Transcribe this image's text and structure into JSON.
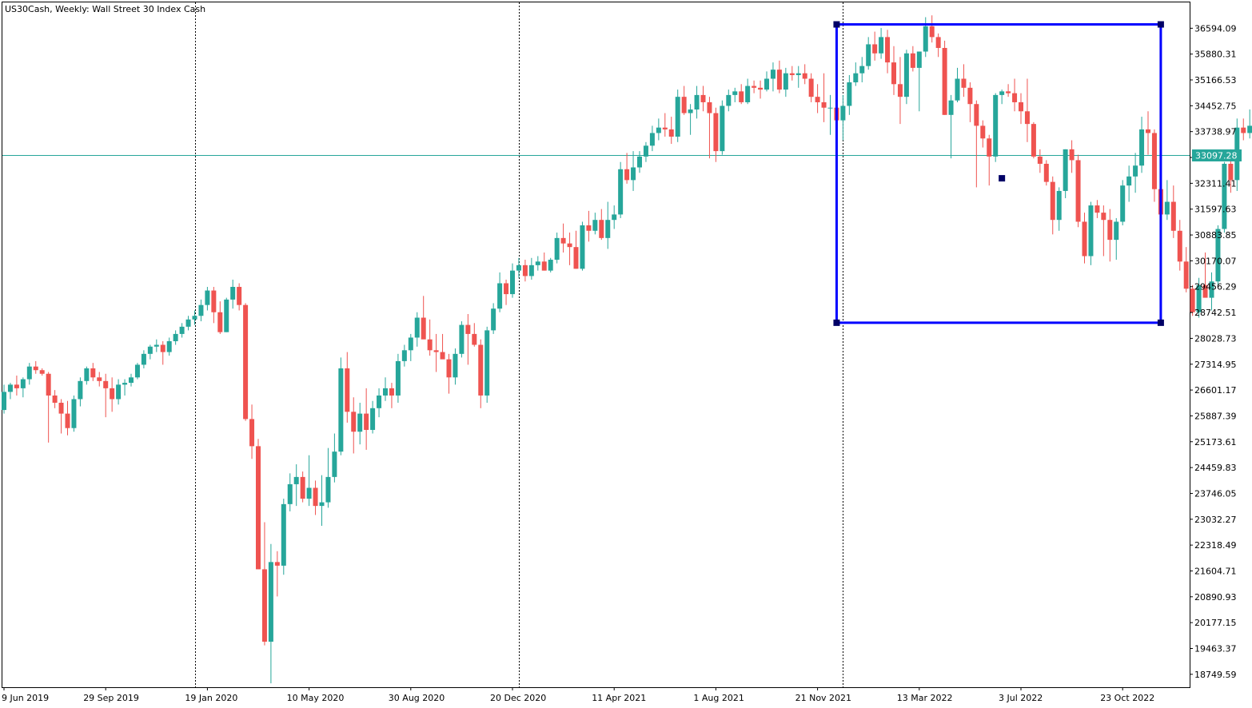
{
  "chart_data": {
    "type": "candlestick",
    "title": "US30Cash, Weekly:  Wall Street 30 Index Cash",
    "symbol": "US30Cash",
    "timeframe": "Weekly",
    "description": "Wall Street 30 Index Cash",
    "ylim": [
      18392.68,
      37307.78
    ],
    "y_ticks": [
      "36594.09",
      "35880.31",
      "35166.53",
      "34452.75",
      "33738.97",
      "33025.19",
      "32311.41",
      "31597.63",
      "30883.85",
      "30170.07",
      "29456.29",
      "28742.51",
      "28028.73",
      "27314.95",
      "26601.17",
      "25887.39",
      "25173.61",
      "24459.83",
      "23746.05",
      "23032.27",
      "22318.49",
      "21604.71",
      "20890.93",
      "20177.15",
      "19463.37",
      "18749.59"
    ],
    "x_tick_labels": [
      "9 Jun 2019",
      "29 Sep 2019",
      "19 Jan 2020",
      "10 May 2020",
      "30 Aug 2020",
      "20 Dec 2020",
      "11 Apr 2021",
      "1 Aug 2021",
      "21 Nov 2021",
      "13 Mar 2022",
      "3 Jul 2022",
      "23 Oct 2022"
    ],
    "x_tick_bar_index": [
      0,
      16,
      32,
      48,
      64,
      80,
      96,
      112,
      128,
      144,
      160,
      176
    ],
    "current_price": "33097.28",
    "current_price_value": 33097.28,
    "grid": false,
    "period_separators_bar_index": [
      30,
      81,
      132
    ],
    "bull_color": "#26a69a",
    "bear_color": "#ef5350",
    "price_line_color": "#26a69a",
    "rectangle": {
      "start_bar": 131,
      "end_bar": 182,
      "price_high": 36700,
      "price_low": 28460,
      "color": "#0000ff"
    },
    "anchor_point": {
      "bar": 157,
      "price": 32450
    },
    "candles": [
      [
        26050,
        26750,
        25950,
        26550
      ],
      [
        26550,
        26800,
        26350,
        26750
      ],
      [
        26750,
        27000,
        26450,
        26650
      ],
      [
        26650,
        26950,
        26400,
        26900
      ],
      [
        26900,
        27350,
        26750,
        27250
      ],
      [
        27250,
        27400,
        27050,
        27150
      ],
      [
        27150,
        27200,
        27000,
        27050
      ],
      [
        27050,
        27100,
        25150,
        26450
      ],
      [
        26450,
        26600,
        26100,
        26250
      ],
      [
        26250,
        26350,
        25400,
        25950
      ],
      [
        25950,
        26300,
        25350,
        25550
      ],
      [
        25550,
        26450,
        25450,
        26350
      ],
      [
        26350,
        26950,
        26150,
        26850
      ],
      [
        26850,
        27250,
        26750,
        27200
      ],
      [
        27200,
        27350,
        26850,
        26950
      ],
      [
        26950,
        27100,
        26700,
        26850
      ],
      [
        26850,
        27050,
        25850,
        26650
      ],
      [
        26650,
        26950,
        26000,
        26350
      ],
      [
        26350,
        26900,
        26200,
        26750
      ],
      [
        26750,
        26900,
        26450,
        26800
      ],
      [
        26800,
        27050,
        26700,
        26950
      ],
      [
        26950,
        27350,
        26900,
        27300
      ],
      [
        27300,
        27700,
        27200,
        27600
      ],
      [
        27600,
        27850,
        27450,
        27800
      ],
      [
        27800,
        28000,
        27650,
        27850
      ],
      [
        27850,
        27950,
        27300,
        27650
      ],
      [
        27650,
        28050,
        27550,
        27950
      ],
      [
        27950,
        28250,
        27850,
        28150
      ],
      [
        28150,
        28450,
        28050,
        28350
      ],
      [
        28350,
        28650,
        28250,
        28550
      ],
      [
        28550,
        28800,
        28400,
        28650
      ],
      [
        28650,
        29100,
        28500,
        28950
      ],
      [
        28950,
        29450,
        28800,
        29350
      ],
      [
        29350,
        29450,
        28450,
        28750
      ],
      [
        28750,
        29050,
        28150,
        28200
      ],
      [
        28200,
        29150,
        28200,
        29100
      ],
      [
        29100,
        29650,
        28850,
        29450
      ],
      [
        29450,
        29550,
        28800,
        28950
      ],
      [
        28950,
        29000,
        25750,
        25800
      ],
      [
        25800,
        26200,
        24700,
        25050
      ],
      [
        25050,
        25250,
        21650,
        21650
      ],
      [
        21650,
        22950,
        19550,
        19650
      ],
      [
        19650,
        22350,
        18500,
        21850
      ],
      [
        21850,
        22150,
        20900,
        21750
      ],
      [
        21750,
        23600,
        21500,
        23450
      ],
      [
        23450,
        24300,
        23250,
        24000
      ],
      [
        24000,
        24550,
        23400,
        24200
      ],
      [
        24200,
        24350,
        23500,
        23600
      ],
      [
        23600,
        24800,
        23400,
        23900
      ],
      [
        23900,
        24100,
        23150,
        23400
      ],
      [
        23400,
        24250,
        22850,
        23500
      ],
      [
        23500,
        25000,
        23350,
        24200
      ],
      [
        24200,
        25400,
        24050,
        24900
      ],
      [
        24900,
        27500,
        24800,
        27200
      ],
      [
        27200,
        27650,
        25700,
        26000
      ],
      [
        26000,
        26400,
        24850,
        25450
      ],
      [
        25450,
        26250,
        25100,
        25950
      ],
      [
        25950,
        26650,
        24950,
        25500
      ],
      [
        25500,
        26300,
        25400,
        26100
      ],
      [
        26100,
        26650,
        25850,
        26450
      ],
      [
        26450,
        26950,
        26300,
        26650
      ],
      [
        26650,
        26800,
        26100,
        26450
      ],
      [
        26450,
        27600,
        26250,
        27400
      ],
      [
        27400,
        27850,
        27250,
        27700
      ],
      [
        27700,
        28150,
        27400,
        28050
      ],
      [
        28050,
        28750,
        27800,
        28600
      ],
      [
        28600,
        29200,
        28150,
        28000
      ],
      [
        28000,
        28550,
        27550,
        27700
      ],
      [
        27700,
        28150,
        27100,
        27650
      ],
      [
        27650,
        28150,
        27500,
        27450
      ],
      [
        27450,
        27600,
        26500,
        26950
      ],
      [
        26950,
        27750,
        26750,
        27600
      ],
      [
        27600,
        28500,
        27500,
        28400
      ],
      [
        28400,
        28700,
        27300,
        28150
      ],
      [
        28150,
        28450,
        27800,
        27850
      ],
      [
        27850,
        28000,
        26100,
        26450
      ],
      [
        26450,
        28350,
        26250,
        28250
      ],
      [
        28250,
        29000,
        28150,
        28850
      ],
      [
        28850,
        29850,
        28750,
        29550
      ],
      [
        29550,
        29650,
        28950,
        29250
      ],
      [
        29250,
        30100,
        29150,
        29900
      ],
      [
        29900,
        30250,
        29700,
        30050
      ],
      [
        30050,
        30200,
        29600,
        29750
      ],
      [
        29750,
        30250,
        29650,
        30050
      ],
      [
        30050,
        30300,
        29900,
        30150
      ],
      [
        30150,
        30400,
        29900,
        29900
      ],
      [
        29900,
        30250,
        29850,
        30200
      ],
      [
        30200,
        30950,
        30100,
        30800
      ],
      [
        30800,
        31200,
        30400,
        30650
      ],
      [
        30650,
        30950,
        30050,
        30550
      ],
      [
        30550,
        31000,
        29950,
        29950
      ],
      [
        29950,
        31250,
        29900,
        31150
      ],
      [
        31150,
        31550,
        30700,
        31000
      ],
      [
        31000,
        31500,
        30900,
        31300
      ],
      [
        31300,
        31600,
        30750,
        30800
      ],
      [
        30800,
        31800,
        30500,
        31300
      ],
      [
        31300,
        31700,
        31050,
        31450
      ],
      [
        31450,
        32900,
        31350,
        32700
      ],
      [
        32700,
        33150,
        32300,
        32400
      ],
      [
        32400,
        33200,
        32100,
        32750
      ],
      [
        32750,
        33200,
        32600,
        33050
      ],
      [
        33050,
        33450,
        32900,
        33350
      ],
      [
        33350,
        33900,
        33200,
        33700
      ],
      [
        33700,
        34100,
        33500,
        33850
      ],
      [
        33850,
        34250,
        33600,
        33800
      ],
      [
        33800,
        34150,
        33400,
        33600
      ],
      [
        33600,
        34900,
        33450,
        34700
      ],
      [
        34700,
        35000,
        34200,
        34250
      ],
      [
        34250,
        34500,
        33650,
        34350
      ],
      [
        34350,
        35000,
        34100,
        34750
      ],
      [
        34750,
        35000,
        34300,
        34550
      ],
      [
        34550,
        34700,
        33000,
        34250
      ],
      [
        34250,
        34400,
        32900,
        33200
      ],
      [
        33200,
        34600,
        33100,
        34450
      ],
      [
        34450,
        34900,
        34300,
        34750
      ],
      [
        34750,
        34950,
        34550,
        34850
      ],
      [
        34850,
        35050,
        34500,
        34550
      ],
      [
        34550,
        35200,
        34500,
        35000
      ],
      [
        35000,
        35150,
        34800,
        34950
      ],
      [
        34950,
        35150,
        34650,
        34900
      ],
      [
        34900,
        35400,
        34850,
        35200
      ],
      [
        35200,
        35650,
        34850,
        35450
      ],
      [
        35450,
        35700,
        34800,
        34900
      ],
      [
        34900,
        35500,
        34700,
        35350
      ],
      [
        35350,
        35550,
        35150,
        35300
      ],
      [
        35300,
        35550,
        34950,
        35350
      ],
      [
        35350,
        35600,
        35050,
        35200
      ],
      [
        35200,
        35350,
        34550,
        34700
      ],
      [
        34700,
        35050,
        34250,
        34550
      ],
      [
        34550,
        35350,
        34000,
        34400
      ],
      [
        34400,
        34750,
        33650,
        34400
      ],
      [
        34400,
        34500,
        33850,
        34050
      ],
      [
        34050,
        34750,
        33500,
        34450
      ],
      [
        34450,
        35300,
        34200,
        35100
      ],
      [
        35100,
        35650,
        35000,
        35350
      ],
      [
        35350,
        35800,
        35100,
        35550
      ],
      [
        35550,
        36350,
        35450,
        36150
      ],
      [
        36150,
        36500,
        35700,
        35900
      ],
      [
        35900,
        36600,
        35750,
        36350
      ],
      [
        36350,
        36550,
        35350,
        35650
      ],
      [
        35650,
        36100,
        34750,
        35050
      ],
      [
        35050,
        35800,
        33950,
        34700
      ],
      [
        34700,
        36000,
        34500,
        35900
      ],
      [
        35900,
        36100,
        35400,
        35500
      ],
      [
        35500,
        35950,
        34300,
        35950
      ],
      [
        35950,
        36900,
        35800,
        36650
      ],
      [
        36650,
        36950,
        36200,
        36350
      ],
      [
        36350,
        36450,
        35800,
        36050
      ],
      [
        36050,
        36250,
        34200,
        34200
      ],
      [
        34200,
        34750,
        33000,
        34600
      ],
      [
        34600,
        35500,
        34550,
        35200
      ],
      [
        35200,
        35600,
        34700,
        34950
      ],
      [
        34950,
        35100,
        34000,
        34500
      ],
      [
        34500,
        34600,
        32200,
        33900
      ],
      [
        33900,
        34050,
        33300,
        33550
      ],
      [
        33550,
        33650,
        32250,
        33050
      ],
      [
        33050,
        34800,
        32900,
        34750
      ],
      [
        34750,
        34900,
        34500,
        34850
      ],
      [
        34850,
        35050,
        34700,
        34800
      ],
      [
        34800,
        35200,
        34300,
        34550
      ],
      [
        34550,
        34800,
        33950,
        34300
      ],
      [
        34300,
        35200,
        33450,
        33950
      ],
      [
        33950,
        34000,
        33000,
        33050
      ],
      [
        33050,
        33250,
        32600,
        32850
      ],
      [
        32850,
        32950,
        32250,
        32350
      ],
      [
        32350,
        32500,
        30900,
        31300
      ],
      [
        31300,
        32200,
        31000,
        32100
      ],
      [
        32100,
        33250,
        31900,
        33250
      ],
      [
        33250,
        33500,
        32600,
        32950
      ],
      [
        32950,
        33100,
        31100,
        31250
      ],
      [
        31250,
        31500,
        30100,
        30300
      ],
      [
        30300,
        31800,
        30050,
        31700
      ],
      [
        31700,
        31850,
        31350,
        31500
      ],
      [
        31500,
        31700,
        30300,
        31300
      ],
      [
        31300,
        31600,
        30150,
        30750
      ],
      [
        30750,
        31350,
        30200,
        31250
      ],
      [
        31250,
        32400,
        31150,
        32250
      ],
      [
        32250,
        32800,
        31800,
        32500
      ],
      [
        32500,
        33150,
        32050,
        32800
      ],
      [
        32800,
        34150,
        32600,
        33800
      ],
      [
        33800,
        34300,
        33100,
        33700
      ],
      [
        33700,
        33800,
        31800,
        32150
      ],
      [
        32150,
        32250,
        31200,
        31450
      ],
      [
        31450,
        32400,
        31300,
        31800
      ],
      [
        31800,
        32250,
        30800,
        31000
      ],
      [
        31000,
        31300,
        29900,
        30150
      ],
      [
        30150,
        30550,
        29300,
        29400
      ],
      [
        29400,
        29500,
        28650,
        28750
      ],
      [
        28750,
        29700,
        28600,
        29500
      ],
      [
        29500,
        30400,
        29300,
        29150
      ],
      [
        29150,
        29850,
        28800,
        29600
      ],
      [
        29600,
        31150,
        29500,
        31050
      ],
      [
        31050,
        32900,
        30950,
        32850
      ],
      [
        32850,
        33250,
        32050,
        32400
      ],
      [
        32400,
        34100,
        32100,
        33850
      ],
      [
        33850,
        34100,
        33500,
        33700
      ],
      [
        33700,
        34350,
        33550,
        33900
      ],
      [
        33900,
        34600,
        33800,
        34500
      ],
      [
        34500,
        34750,
        33800,
        34550
      ],
      [
        34550,
        34650,
        33450,
        33550
      ],
      [
        33550,
        35000,
        32800,
        32900
      ],
      [
        32900,
        33250,
        32550,
        32850
      ],
      [
        32850,
        33200,
        32500,
        33100
      ]
    ]
  }
}
